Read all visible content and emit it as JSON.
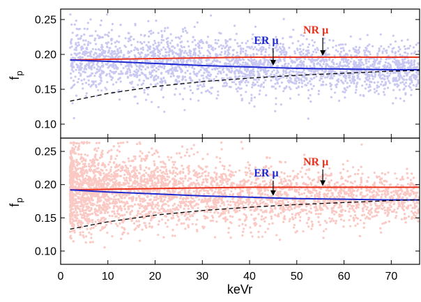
{
  "chart_data": [
    {
      "type": "scatter",
      "panel": "top",
      "ylabel": "f",
      "ylabel_sub": "p",
      "xlim": [
        0,
        76
      ],
      "ylim": [
        0.08,
        0.265
      ],
      "yticks": [
        "0.10",
        "0.15",
        "0.20",
        "0.25"
      ],
      "ytick_values": [
        0.1,
        0.15,
        0.2,
        0.25
      ],
      "scatter_color": "#c8c8f2",
      "series": [
        {
          "name": "NR μ",
          "color": "#e8321e",
          "x": [
            2,
            10,
            20,
            30,
            40,
            50,
            60,
            70,
            76
          ],
          "y": [
            0.192,
            0.193,
            0.194,
            0.195,
            0.196,
            0.196,
            0.196,
            0.196,
            0.196
          ]
        },
        {
          "name": "ER μ",
          "color": "#1e2ad0",
          "x": [
            2,
            10,
            20,
            30,
            40,
            50,
            60,
            70,
            76
          ],
          "y": [
            0.192,
            0.19,
            0.187,
            0.184,
            0.182,
            0.18,
            0.179,
            0.178,
            0.178
          ]
        },
        {
          "name": "",
          "color": "#000000",
          "dash": true,
          "x": [
            2,
            10,
            20,
            30,
            40,
            50,
            60,
            70,
            76
          ],
          "y": [
            0.133,
            0.144,
            0.154,
            0.161,
            0.166,
            0.17,
            0.173,
            0.176,
            0.177
          ]
        }
      ],
      "annotations": [
        {
          "text": "ER μ",
          "color": "#1e2ad0",
          "arrow_x": 45,
          "arrow_y_from": 0.209,
          "arrow_y_to": 0.183
        },
        {
          "text": "NR μ",
          "color": "#e8321e",
          "arrow_x": 55.5,
          "arrow_y_from": 0.224,
          "arrow_y_to": 0.197
        }
      ]
    },
    {
      "type": "scatter",
      "panel": "bottom",
      "xlabel": "keVr",
      "ylabel": "f",
      "ylabel_sub": "p",
      "xlim": [
        0,
        76
      ],
      "ylim": [
        0.08,
        0.27
      ],
      "xticks": [
        "0",
        "10",
        "20",
        "30",
        "40",
        "50",
        "60",
        "70"
      ],
      "xtick_values": [
        0,
        10,
        20,
        30,
        40,
        50,
        60,
        70
      ],
      "yticks": [
        "0.10",
        "0.15",
        "0.20",
        "0.25"
      ],
      "ytick_values": [
        0.1,
        0.15,
        0.2,
        0.25
      ],
      "scatter_color": "#fbc9c4",
      "series": [
        {
          "name": "NR μ",
          "color": "#e8321e",
          "x": [
            2,
            10,
            20,
            30,
            40,
            50,
            60,
            70,
            76
          ],
          "y": [
            0.192,
            0.193,
            0.194,
            0.195,
            0.196,
            0.196,
            0.196,
            0.196,
            0.196
          ]
        },
        {
          "name": "ER μ",
          "color": "#1e2ad0",
          "x": [
            2,
            10,
            20,
            30,
            40,
            50,
            60,
            70,
            76
          ],
          "y": [
            0.192,
            0.189,
            0.186,
            0.183,
            0.181,
            0.179,
            0.178,
            0.177,
            0.177
          ]
        },
        {
          "name": "",
          "color": "#000000",
          "dash": true,
          "x": [
            2,
            10,
            20,
            30,
            40,
            50,
            60,
            70,
            76
          ],
          "y": [
            0.133,
            0.144,
            0.154,
            0.161,
            0.166,
            0.17,
            0.173,
            0.176,
            0.177
          ]
        }
      ],
      "annotations": [
        {
          "text": "ER μ",
          "color": "#1e2ad0",
          "arrow_x": 45,
          "arrow_y_from": 0.206,
          "arrow_y_to": 0.182
        },
        {
          "text": "NR μ",
          "color": "#e8321e",
          "arrow_x": 55.5,
          "arrow_y_from": 0.223,
          "arrow_y_to": 0.197
        }
      ]
    }
  ]
}
